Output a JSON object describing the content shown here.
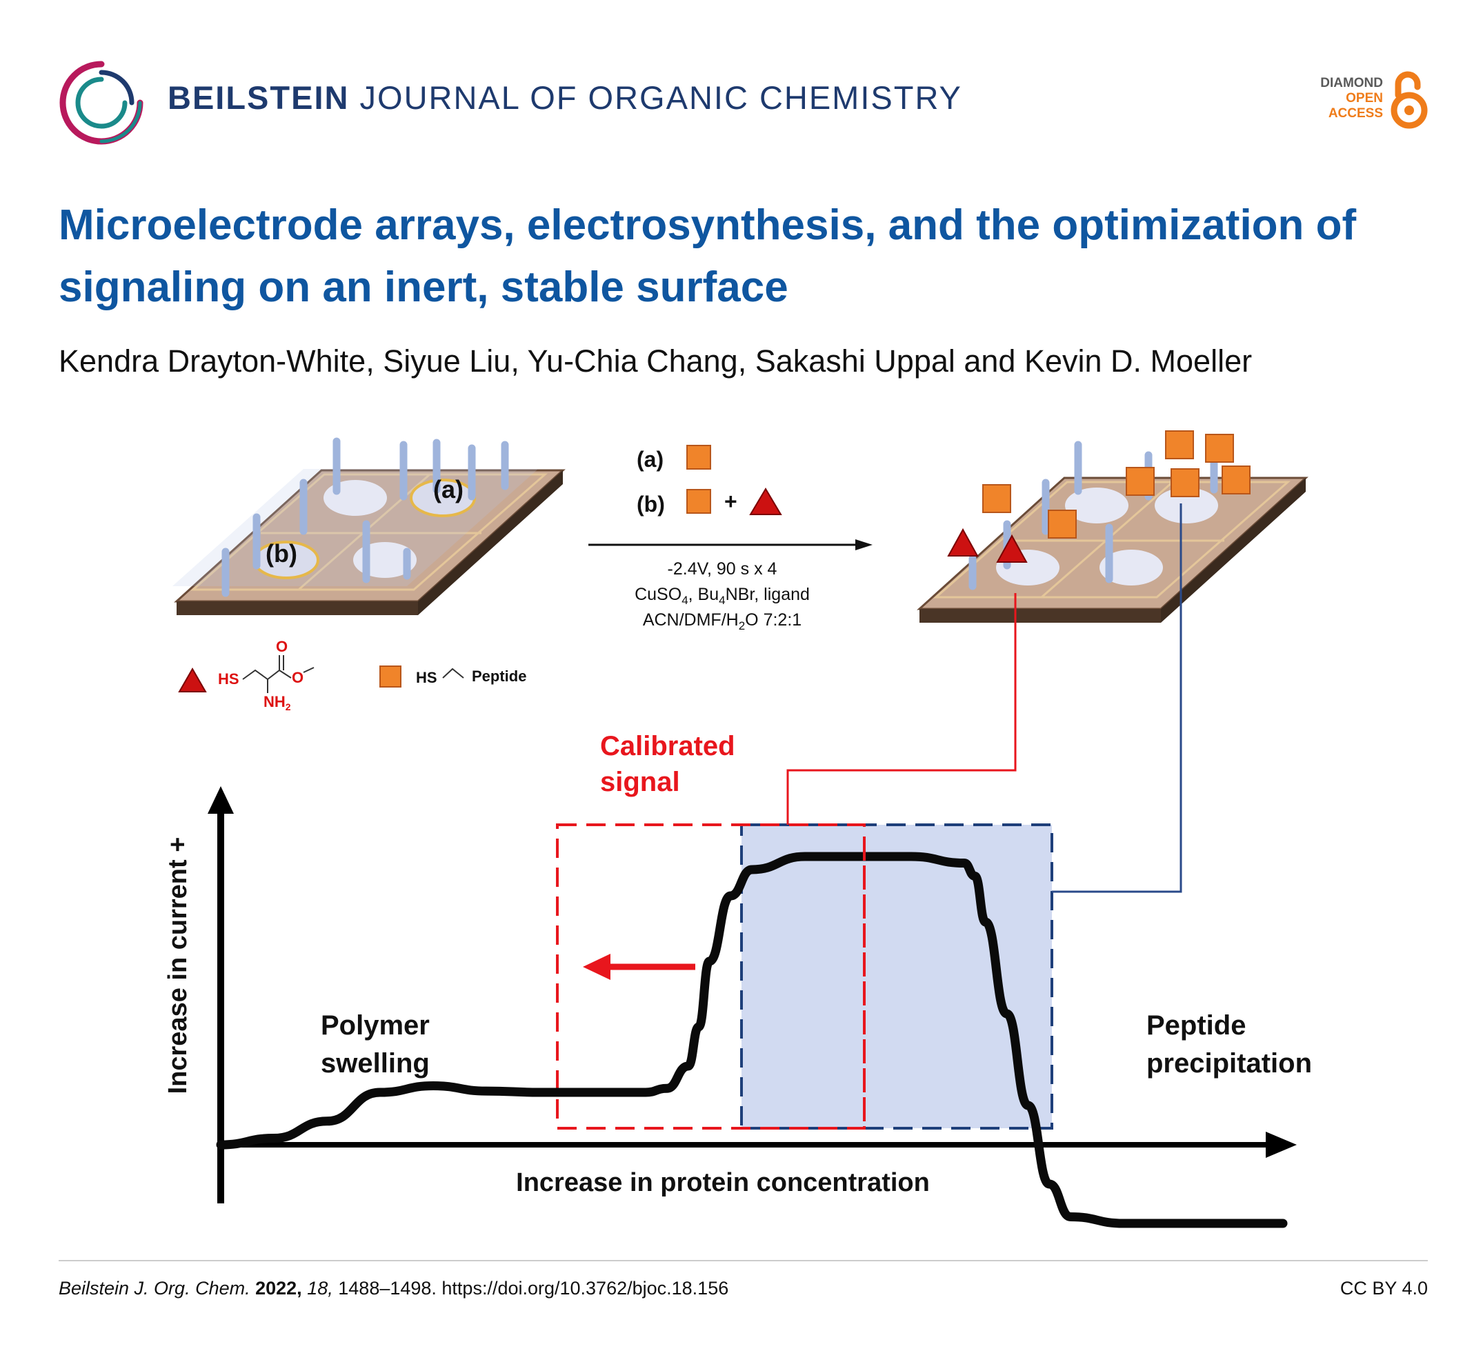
{
  "header": {
    "journal_bold": "BEILSTEIN",
    "journal_rest": "JOURNAL OF ORGANIC CHEMISTRY",
    "oa_badge": {
      "line1": "DIAMOND",
      "line2": "OPEN",
      "line3": "ACCESS"
    }
  },
  "article": {
    "title": "Microelectrode arrays, electrosynthesis, and the optimization of signaling on an inert, stable surface",
    "authors": "Kendra Drayton-White, Siyue Liu, Yu-Chia Chang, Sakashi Uppal and Kevin D. Moeller"
  },
  "figure": {
    "label_a": "(a)",
    "label_b": "(b)",
    "plus": "+",
    "conditions": {
      "line1": "-2.4V, 90 s x 4",
      "line2_pre": "CuSO",
      "line2_sub1": "4",
      "line2_mid": ", Bu",
      "line2_sub2": "4",
      "line2_post": "NBr, ligand",
      "line3_pre": "ACN/DMF/H",
      "line3_sub": "2",
      "line3_post": "O   7:2:1"
    },
    "legend": {
      "hs": "HS",
      "o_top": "O",
      "o_minus": "O",
      "nh2": "NH",
      "nh2_sub": "2",
      "peptide": "Peptide"
    },
    "chart_data": {
      "type": "line",
      "title": "",
      "xlabel": "Increase in protein concentration",
      "ylabel": "Increase in current +",
      "annotations": [
        "Calibrated signal",
        "Polymer swelling",
        "Peptide precipitation"
      ],
      "annotation_lines": {
        "calibrated_1": "Calibrated",
        "calibrated_2": "signal",
        "polymer_1": "Polymer",
        "polymer_2": "swelling",
        "peptide_1": "Peptide",
        "peptide_2": "precipitation"
      },
      "series": [
        {
          "name": "current response",
          "x": [
            0,
            5,
            10,
            15,
            20,
            25,
            30,
            35,
            40,
            42,
            44,
            45,
            46,
            48,
            50,
            55,
            60,
            65,
            70,
            71,
            72,
            74,
            76,
            78,
            80,
            85,
            90,
            100
          ],
          "y": [
            0,
            0.5,
            1.8,
            4.0,
            4.5,
            4.1,
            4.0,
            4.0,
            4.0,
            4.3,
            6,
            9,
            14,
            19,
            21,
            22,
            22,
            22,
            21.5,
            20.5,
            17,
            10,
            3,
            -3,
            -5.5,
            -6,
            -6,
            -6
          ]
        }
      ]
    }
  },
  "footer": {
    "journal": "Beilstein J. Org. Chem.",
    "year": "2022,",
    "volume": "18,",
    "rest": "1488–1498. https://doi.org/10.3762/bjoc.18.156",
    "license": "CC BY 4.0"
  }
}
